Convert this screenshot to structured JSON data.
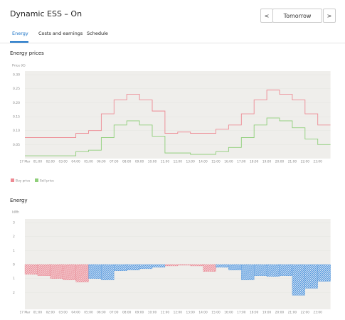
{
  "header": {
    "title": "Dynamic ESS – On",
    "prev": "<",
    "day": "Tomorrow",
    "next": ">"
  },
  "tabs": [
    "Energy",
    "Costs and earnings",
    "Schedule"
  ],
  "chart_data": [
    {
      "type": "step",
      "title": "Energy prices",
      "y_label": "Price (€)",
      "categories": [
        "17 Mar",
        "01:00",
        "02:00",
        "03:00",
        "04:00",
        "05:00",
        "06:00",
        "07:00",
        "08:00",
        "09:00",
        "10:00",
        "11:00",
        "12:00",
        "13:00",
        "14:00",
        "15:00",
        "16:00",
        "17:00",
        "18:00",
        "19:00",
        "20:00",
        "21:00",
        "22:00",
        "23:00"
      ],
      "ylim": [
        0,
        0.3
      ],
      "yticks": [
        {
          "value": 0.05,
          "label": "0.05"
        },
        {
          "value": 0.1,
          "label": "0.10"
        },
        {
          "value": 0.15,
          "label": "0.15"
        },
        {
          "value": 0.2,
          "label": "0.20"
        },
        {
          "value": 0.25,
          "label": "0.25"
        },
        {
          "value": 0.3,
          "label": "0.30"
        }
      ],
      "legend": "bottom-left",
      "series": [
        {
          "name": "Buy price",
          "color": "#ee8a93",
          "values": [
            0.075,
            0.075,
            0.075,
            0.075,
            0.09,
            0.1,
            0.16,
            0.21,
            0.23,
            0.21,
            0.17,
            0.09,
            0.095,
            0.09,
            0.09,
            0.105,
            0.12,
            0.16,
            0.21,
            0.245,
            0.23,
            0.21,
            0.16,
            0.12
          ]
        },
        {
          "name": "Sell price",
          "color": "#8fcf7a",
          "values": [
            0.01,
            0.01,
            0.01,
            0.01,
            0.025,
            0.03,
            0.075,
            0.12,
            0.135,
            0.12,
            0.08,
            0.02,
            0.02,
            0.015,
            0.015,
            0.025,
            0.04,
            0.075,
            0.12,
            0.145,
            0.135,
            0.11,
            0.07,
            0.05
          ]
        }
      ]
    },
    {
      "type": "bar",
      "title": "Energy",
      "y_label": "kWh",
      "categories": [
        "17 Mar",
        "01:00",
        "02:00",
        "03:00",
        "04:00",
        "05:00",
        "06:00",
        "07:00",
        "08:00",
        "09:00",
        "10:00",
        "11:00",
        "12:00",
        "13:00",
        "14:00",
        "15:00",
        "16:00",
        "17:00",
        "18:00",
        "19:00",
        "20:00",
        "21:00",
        "22:00",
        "23:00"
      ],
      "ylim": [
        -3,
        3
      ],
      "yticks": [
        {
          "value": -2,
          "label": "2"
        },
        {
          "value": -1,
          "label": "1"
        },
        0,
        1,
        2,
        3
      ],
      "series": [
        {
          "color": "#e57d89",
          "values": [
            -0.7,
            -0.8,
            -1.0,
            -1.1,
            -1.25,
            null,
            null,
            null,
            null,
            null,
            null,
            -0.1,
            -0.05,
            -0.1,
            -0.5,
            null,
            null,
            null,
            null,
            null,
            null,
            null,
            null,
            null
          ]
        },
        {
          "color": "#4a90d9",
          "values": [
            null,
            null,
            null,
            null,
            null,
            -1.0,
            -1.1,
            -0.45,
            -0.4,
            -0.3,
            -0.2,
            null,
            null,
            null,
            null,
            -0.2,
            -0.4,
            -1.1,
            -0.8,
            -0.85,
            -0.8,
            -2.2,
            -1.7,
            -1.2
          ]
        }
      ]
    }
  ]
}
